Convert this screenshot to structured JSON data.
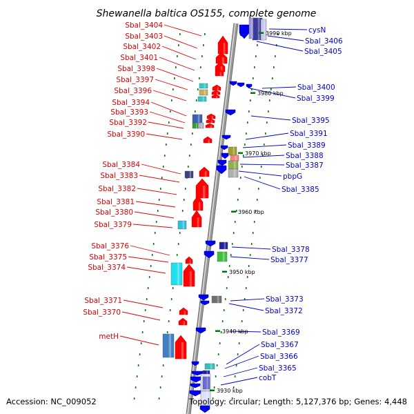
{
  "title": "Shewanella baltica OS155, complete genome",
  "footer": {
    "accession": "Accession: NC_009052",
    "topology": "Topology: circular; Length: 5,127,376 bp; Genes: 4,448"
  },
  "colors": {
    "forward": "#ff0000",
    "reverse": "#0000ee",
    "label_left": "#e00000",
    "label_right": "#0000cc",
    "tick": "#007700",
    "spine": "#999999"
  },
  "ticks": [
    "3990 kbp",
    "3980 kbp",
    "3970 kbp",
    "3960 kbp",
    "3950 kbp",
    "3940 kbp",
    "3930 kbp"
  ],
  "left_labels": [
    "Sbal_3404",
    "Sbal_3403",
    "Sbal_3402",
    "Sbal_3401",
    "Sbal_3398",
    "Sbal_3397",
    "Sbal_3396",
    "Sbal_3394",
    "Sbal_3393",
    "Sbal_3392",
    "Sbal_3390",
    "Sbal_3384",
    "Sbal_3383",
    "Sbal_3382",
    "Sbal_3381",
    "Sbal_3380",
    "Sbal_3379",
    "Sbal_3376",
    "Sbal_3375",
    "Sbal_3374",
    "Sbal_3371",
    "Sbal_3370",
    "metH"
  ],
  "right_labels": [
    "cysN",
    "Sbal_3406",
    "Sbal_3405",
    "Sbal_3400",
    "Sbal_3399",
    "Sbal_3395",
    "Sbal_3391",
    "Sbal_3389",
    "Sbal_3388",
    "Sbal_3387",
    "pbpG",
    "Sbal_3385",
    "Sbal_3378",
    "Sbal_3377",
    "Sbal_3373",
    "Sbal_3372",
    "Sbal_3369",
    "Sbal_3367",
    "Sbal_3366",
    "Sbal_3365",
    "cobT"
  ]
}
